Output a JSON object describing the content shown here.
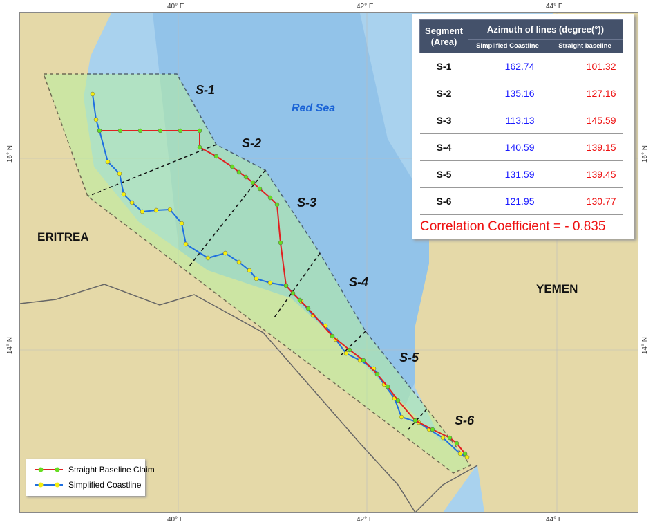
{
  "axes": {
    "top": [
      "40° E",
      "42° E",
      "44° E"
    ],
    "bottom": [
      "40° E",
      "42° E",
      "44° E"
    ],
    "left": [
      "16° N",
      "14° N"
    ],
    "right": [
      "16° N",
      "14° N"
    ]
  },
  "places": {
    "eritrea": "ERITREA",
    "yemen": "YEMEN",
    "sea": "Red Sea"
  },
  "segments": [
    "S-1",
    "S-2",
    "S-3",
    "S-4",
    "S-5",
    "S-6"
  ],
  "table": {
    "header_segment": "Segment\n(Area)",
    "header_segment_l1": "Segment",
    "header_segment_l2": "(Area)",
    "header_azimuth": "Azimuth of lines (degree(°))",
    "col_coast": "Simplified Coastline",
    "col_base": "Straight baseline",
    "rows": [
      {
        "seg": "S-1",
        "coast": "162.74",
        "base": "101.32"
      },
      {
        "seg": "S-2",
        "coast": "135.16",
        "base": "127.16"
      },
      {
        "seg": "S-3",
        "coast": "113.13",
        "base": "145.59"
      },
      {
        "seg": "S-4",
        "coast": "140.59",
        "base": "139.15"
      },
      {
        "seg": "S-5",
        "coast": "131.59",
        "base": "139.45"
      },
      {
        "seg": "S-6",
        "coast": "121.95",
        "base": "130.77"
      }
    ],
    "correlation": "Correlation Coefficient = - 0.835"
  },
  "legend": {
    "baseline": "Straight Baseline Claim",
    "coast": "Simplified Coastline"
  },
  "colors": {
    "baseline": "#e02020",
    "baseline_points": "#66dd22",
    "coast": "#1e6fe0",
    "coast_points": "#f5ee10",
    "land": "#e5d9a8",
    "sea": "#a9d2ee"
  }
}
